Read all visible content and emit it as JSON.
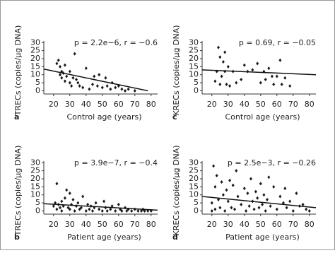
{
  "chart_data": [
    {
      "type": "scatter",
      "panel": "a",
      "annotation": "p = 2.2e−6, r = −0.6",
      "x_label": "Control age (years)",
      "y_label": "TRECs (copies/µg DNA)",
      "color": "#1a1a1a",
      "x": [
        22,
        23,
        24,
        24,
        25,
        25,
        26,
        27,
        27,
        28,
        30,
        30,
        31,
        32,
        33,
        34,
        35,
        36,
        38,
        40,
        42,
        44,
        45,
        47,
        48,
        50,
        52,
        53,
        55,
        56,
        58,
        60,
        62,
        64,
        66,
        70
      ],
      "y": [
        17,
        19,
        15,
        10,
        8,
        12,
        11,
        16,
        6,
        9,
        5,
        12,
        3,
        8,
        23,
        7,
        5,
        3,
        2,
        14,
        1,
        4,
        9,
        3,
        10,
        2,
        8,
        3,
        1,
        5,
        2,
        3,
        1,
        0,
        1,
        0
      ],
      "fit_x": [
        14,
        78
      ],
      "fit_y": [
        13.5,
        0
      ],
      "xlim": [
        14,
        84
      ],
      "ylim": [
        -2,
        31
      ],
      "xticks": [
        20,
        30,
        40,
        50,
        60,
        70,
        80
      ],
      "yticks": [
        0,
        5,
        10,
        15,
        20,
        25,
        30
      ]
    },
    {
      "type": "scatter",
      "panel": "c",
      "annotation": "p = 0.69, r = −0.05",
      "x_label": "Control age (years)",
      "y_label": "KRECs (copies/µg DNA)",
      "color": "#1a1a1a",
      "x": [
        22,
        23,
        24,
        25,
        25,
        26,
        27,
        28,
        28,
        29,
        30,
        31,
        33,
        35,
        38,
        40,
        42,
        45,
        48,
        50,
        52,
        53,
        55,
        57,
        58,
        60,
        62,
        63,
        65,
        68
      ],
      "y": [
        6,
        12,
        27,
        4,
        21,
        9,
        18,
        24,
        12,
        4,
        15,
        3,
        12,
        5,
        7,
        16,
        12,
        13,
        17,
        5,
        12,
        7,
        14,
        9,
        4,
        9,
        19,
        4,
        8,
        3
      ],
      "fit_x": [
        14,
        84
      ],
      "fit_y": [
        13,
        10
      ],
      "xlim": [
        14,
        84
      ],
      "ylim": [
        -2,
        31
      ],
      "xticks": [
        20,
        30,
        40,
        50,
        60,
        70,
        80
      ],
      "yticks": [
        0,
        5,
        10,
        15,
        20,
        25,
        30
      ]
    },
    {
      "type": "scatter",
      "panel": "b",
      "annotation": "p = 3.9e−7, r = −0.4",
      "x_label": "Patient age (years)",
      "y_label": "TRECs (copies/µg DNA)",
      "color": "#1a1a1a",
      "x": [
        20,
        21,
        22,
        22,
        23,
        24,
        25,
        25,
        26,
        27,
        28,
        29,
        30,
        30,
        31,
        32,
        33,
        34,
        35,
        36,
        37,
        38,
        40,
        41,
        42,
        43,
        44,
        45,
        46,
        48,
        50,
        51,
        52,
        53,
        55,
        56,
        58,
        60,
        61,
        62,
        64,
        65,
        66,
        68,
        70,
        72,
        74,
        75,
        76,
        78,
        80
      ],
      "y": [
        3,
        5,
        17,
        1,
        4,
        2,
        6,
        0,
        3,
        8,
        13,
        2,
        11,
        1,
        4,
        7,
        0,
        3,
        5,
        1,
        2,
        9,
        0,
        4,
        1,
        3,
        0,
        2,
        5,
        1,
        0,
        6,
        2,
        0,
        1,
        3,
        0,
        4,
        1,
        0,
        2,
        0,
        1,
        0,
        1,
        0,
        0,
        1,
        0,
        0,
        0
      ],
      "fit_x": [
        14,
        84
      ],
      "fit_y": [
        4.5,
        0.5
      ],
      "xlim": [
        14,
        84
      ],
      "ylim": [
        -2,
        31
      ],
      "xticks": [
        20,
        30,
        40,
        50,
        60,
        70,
        80
      ],
      "yticks": [
        0,
        5,
        10,
        15,
        20,
        25,
        30
      ]
    },
    {
      "type": "scatter",
      "panel": "d",
      "annotation": "p = 2.5e−3, r = −0.26",
      "x_label": "Patient age (years)",
      "y_label": "KRECs (copies/µg DNA)",
      "color": "#1a1a1a",
      "x": [
        20,
        20,
        21,
        22,
        22,
        23,
        24,
        25,
        26,
        27,
        28,
        29,
        30,
        31,
        32,
        33,
        34,
        35,
        36,
        38,
        40,
        41,
        42,
        43,
        44,
        45,
        46,
        47,
        48,
        49,
        50,
        51,
        52,
        53,
        54,
        55,
        56,
        58,
        60,
        62,
        64,
        65,
        66,
        68,
        70,
        72,
        74,
        76,
        78,
        80
      ],
      "y": [
        0,
        5,
        28,
        15,
        1,
        22,
        7,
        2,
        18,
        10,
        0,
        13,
        6,
        19,
        2,
        16,
        1,
        25,
        9,
        4,
        14,
        0,
        11,
        3,
        20,
        6,
        1,
        12,
        8,
        2,
        17,
        4,
        10,
        0,
        7,
        21,
        3,
        15,
        1,
        9,
        5,
        14,
        2,
        6,
        0,
        11,
        3,
        4,
        1,
        0
      ],
      "fit_x": [
        14,
        84
      ],
      "fit_y": [
        9,
        2
      ],
      "xlim": [
        14,
        84
      ],
      "ylim": [
        -2,
        31
      ],
      "xticks": [
        20,
        30,
        40,
        50,
        60,
        70,
        80
      ],
      "yticks": [
        0,
        5,
        10,
        15,
        20,
        25,
        30
      ]
    }
  ]
}
